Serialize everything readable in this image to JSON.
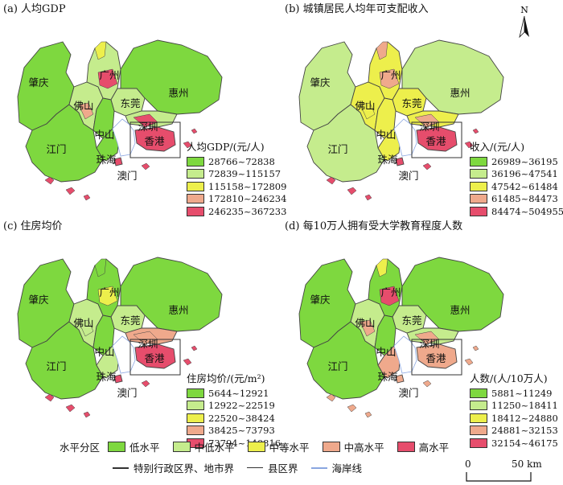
{
  "colors": {
    "low": "#7ed83f",
    "mid_low": "#c5ec8d",
    "mid": "#edef4c",
    "mid_high": "#efa98c",
    "high": "#e64d6c",
    "water": "#ffffff",
    "hk_box": "#333333",
    "sea_line": "#8aa6e0"
  },
  "panels": [
    {
      "title": "(a) 人均GDP",
      "legend_title": "人均GDP/(元/人)",
      "legend": [
        "28766~72838",
        "72839~115157",
        "115158~172809",
        "172810~246234",
        "246235~367233"
      ],
      "levels": {
        "zhaoqing": "low",
        "guangzhou": "mid_low",
        "gz_core": "high",
        "gz_north": "mid",
        "foshan": "mid_low",
        "foshan_s": "mid_high",
        "dongguan": "mid_low",
        "huizhou": "low",
        "jiangmen": "low",
        "zhongshan": "low",
        "zhuhai": "low",
        "shenzhen": "mid_low",
        "sz_core": "high",
        "hongkong": "high",
        "macau": "high"
      }
    },
    {
      "title": "(b) 城镇居民人均年可支配收入",
      "legend_title": "收入/(元/人)",
      "legend": [
        "26989~36195",
        "36196~47541",
        "47542~61484",
        "61485~84473",
        "84474~504955"
      ],
      "levels": {
        "zhaoqing": "mid_low",
        "guangzhou": "mid",
        "gz_core": "mid_high",
        "gz_north": "mid_high",
        "foshan": "mid",
        "foshan_s": "mid",
        "dongguan": "mid",
        "huizhou": "mid_low",
        "jiangmen": "mid_low",
        "zhongshan": "mid",
        "zhuhai": "mid",
        "shenzhen": "mid",
        "sz_core": "mid_high",
        "hongkong": "high",
        "macau": "high"
      }
    },
    {
      "title": "(c) 住房均价",
      "legend_title": "住房均价/(元/m²)",
      "legend": [
        "5644~12921",
        "12922~22519",
        "22520~38424",
        "38425~73793",
        "73794~140816"
      ],
      "levels": {
        "zhaoqing": "low",
        "guangzhou": "low",
        "gz_core": "mid",
        "gz_north": "low",
        "foshan": "mid_low",
        "foshan_s": "mid_low",
        "dongguan": "mid_low",
        "huizhou": "low",
        "jiangmen": "low",
        "zhongshan": "low",
        "zhuhai": "mid_low",
        "shenzhen": "mid_high",
        "sz_core": "mid_high",
        "hongkong": "high",
        "macau": "high"
      }
    },
    {
      "title": "(d) 每10万人拥有受大学教育程度人数",
      "legend_title": "人数/(人/10万人)",
      "legend": [
        "5881~11249",
        "11250~18411",
        "18412~24880",
        "24881~32153",
        "32154~46175"
      ],
      "levels": {
        "zhaoqing": "low",
        "guangzhou": "low",
        "gz_core": "high",
        "gz_north": "mid",
        "foshan": "mid_low",
        "foshan_s": "mid_high",
        "dongguan": "mid_low",
        "huizhou": "low",
        "jiangmen": "low",
        "zhongshan": "low",
        "zhuhai": "mid_high",
        "shenzhen": "mid_low",
        "sz_core": "mid_high",
        "hongkong": "mid_high",
        "macau": "mid_high"
      }
    }
  ],
  "city_labels": {
    "zhaoqing": "肇庆",
    "guangzhou": "广州",
    "foshan": "佛山",
    "dongguan": "东莞",
    "huizhou": "惠州",
    "zhongshan": "中山",
    "jiangmen": "江门",
    "shenzhen": "深圳",
    "hongkong": "香港",
    "zhuhai": "珠海",
    "macau": "澳门"
  },
  "north_label": "N",
  "bottom": {
    "class_title": "水平分区",
    "classes": [
      {
        "label": "低水平",
        "color": "#7ed83f"
      },
      {
        "label": "中低水平",
        "color": "#c5ec8d"
      },
      {
        "label": "中等水平",
        "color": "#edef4c"
      },
      {
        "label": "中高水平",
        "color": "#efa98c"
      },
      {
        "label": "高水平",
        "color": "#e64d6c"
      }
    ],
    "boundary_labels": {
      "city": "特别行政区界、地市界",
      "county": "县区界",
      "coast": "海岸线"
    }
  },
  "scale": {
    "zero": "0",
    "dist": "50 km"
  }
}
